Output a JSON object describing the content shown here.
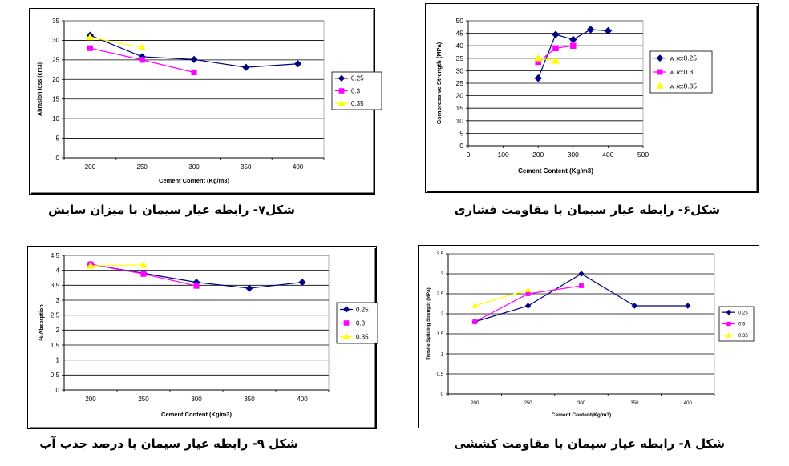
{
  "colors": {
    "s025": "#000080",
    "s03": "#FF00FF",
    "s035": "#FFFF00",
    "grid": "#000000",
    "frame": "#000000",
    "plot_bg": "#FFFFFF"
  },
  "captions": {
    "fig7": "شکل۷- رابطه عیار سیمان با میزان سایش",
    "fig6": "شکل۶- رابطه عیار سیمان با مقاومت فشاری",
    "fig9": "شکل ۹- رابطه عیار سیمان با درصد جذب آب",
    "fig8": "شکل ۸- رابطه عیار سیمان با مقاومت کششی"
  },
  "chart_data": [
    {
      "id": "fig7",
      "type": "line",
      "xlabel": "Cement Content (Kg/m3)",
      "ylabel": "Abrasion loss (cm3)",
      "categories": [
        "200",
        "250",
        "300",
        "350",
        "400"
      ],
      "ylim": [
        0,
        35
      ],
      "yticks": [
        0,
        5,
        10,
        15,
        20,
        25,
        30,
        35
      ],
      "grid": true,
      "legend": "right",
      "series": [
        {
          "name": "0.25",
          "color": "#000080",
          "marker": "diamond",
          "values": [
            31.3,
            25.8,
            25.1,
            23.1,
            24.0
          ]
        },
        {
          "name": "0.3",
          "color": "#FF00FF",
          "marker": "square",
          "values": [
            28.0,
            25.0,
            21.8,
            null,
            null
          ]
        },
        {
          "name": "0.35",
          "color": "#FFFF00",
          "marker": "triangle",
          "values": [
            30.8,
            28.2,
            null,
            null,
            null
          ]
        }
      ]
    },
    {
      "id": "fig6",
      "type": "line",
      "xlabel": "Cement Content (Kg/m3)",
      "ylabel": "Compressive Strength (MPa)",
      "xlim": [
        0,
        500
      ],
      "xticks": [
        0,
        100,
        200,
        300,
        400,
        500
      ],
      "ylim": [
        0,
        50
      ],
      "yticks": [
        0,
        5,
        10,
        15,
        20,
        25,
        30,
        35,
        40,
        45,
        50
      ],
      "grid": true,
      "legend": "right",
      "series": [
        {
          "name": "w /c:0.25",
          "color": "#000080",
          "marker": "diamond",
          "x": [
            200,
            250,
            300,
            350,
            400
          ],
          "values": [
            27,
            44.5,
            42.5,
            46.5,
            46
          ]
        },
        {
          "name": "w /c:0.3",
          "color": "#FF00FF",
          "marker": "square",
          "x": [
            200,
            250,
            300
          ],
          "values": [
            33.5,
            39,
            40
          ]
        },
        {
          "name": "w /c:0.35",
          "color": "#FFFF00",
          "marker": "triangle",
          "x": [
            200,
            250
          ],
          "values": [
            35,
            34
          ]
        }
      ]
    },
    {
      "id": "fig9",
      "type": "line",
      "xlabel": "Cement Content (Kg/m3)",
      "ylabel": "% Absorption",
      "categories": [
        "200",
        "250",
        "300",
        "350",
        "400"
      ],
      "ylim": [
        0,
        4.5
      ],
      "yticks": [
        0,
        0.5,
        1,
        1.5,
        2,
        2.5,
        3,
        3.5,
        4,
        4.5
      ],
      "grid": true,
      "legend": "right",
      "series": [
        {
          "name": "0.25",
          "color": "#000080",
          "marker": "diamond",
          "values": [
            4.2,
            3.9,
            3.6,
            3.4,
            3.6
          ]
        },
        {
          "name": "0.3",
          "color": "#FF00FF",
          "marker": "square",
          "values": [
            4.2,
            3.88,
            3.48,
            null,
            null
          ]
        },
        {
          "name": "0.35",
          "color": "#FFFF00",
          "marker": "triangle",
          "values": [
            4.15,
            4.18,
            null,
            null,
            null
          ]
        }
      ]
    },
    {
      "id": "fig8",
      "type": "line",
      "xlabel": "Cement Content(Kg/m3)",
      "ylabel": "Tensile Splitting Strength (MPa)",
      "categories": [
        "200",
        "250",
        "300",
        "350",
        "400"
      ],
      "ylim": [
        0,
        3.5
      ],
      "yticks": [
        0,
        0.5,
        1,
        1.5,
        2,
        2.5,
        3,
        3.5
      ],
      "grid": true,
      "legend": "right",
      "series": [
        {
          "name": "0.25",
          "color": "#000080",
          "marker": "diamond",
          "values": [
            1.8,
            2.2,
            3.0,
            2.2,
            2.2
          ]
        },
        {
          "name": "0.3",
          "color": "#FF00FF",
          "marker": "square",
          "values": [
            1.8,
            2.5,
            2.7,
            null,
            null
          ]
        },
        {
          "name": "0.35",
          "color": "#FFFF00",
          "marker": "triangle",
          "values": [
            2.2,
            2.6,
            null,
            null,
            null
          ]
        }
      ]
    }
  ]
}
